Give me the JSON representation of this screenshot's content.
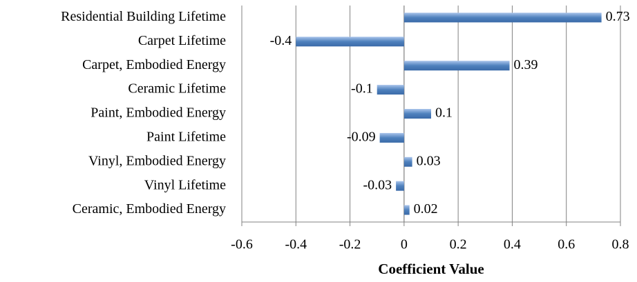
{
  "chart_data": {
    "type": "hbar",
    "x_label": "Coefficient Value",
    "categories": [
      "Residential Building Lifetime",
      "Carpet Lifetime",
      "Carpet, Embodied Energy",
      "Ceramic Lifetime",
      "Paint, Embodied Energy",
      "Paint Lifetime",
      "Vinyl, Embodied Energy",
      "Vinyl Lifetime",
      "Ceramic, Embodied Energy"
    ],
    "values": [
      0.73,
      -0.4,
      0.39,
      -0.1,
      0.1,
      -0.09,
      0.03,
      -0.03,
      0.02
    ],
    "color": "#4f81bd",
    "xlim": [
      -0.6,
      0.8
    ],
    "xticks": [
      -0.6,
      -0.4,
      -0.2,
      0,
      0.2,
      0.4,
      0.6,
      0.8
    ],
    "grid": true
  }
}
